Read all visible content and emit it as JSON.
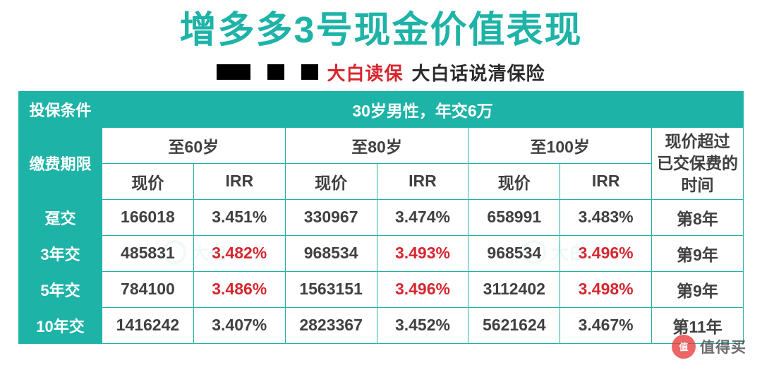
{
  "colors": {
    "teal": "#1eb3a7",
    "teal_border": "#1eb3a7",
    "red": "#d7262f",
    "dark_text": "#2b2b2b",
    "cell_text": "#404040",
    "white": "#ffffff",
    "wm_circle": "#e83a3a",
    "wm_text": "#444444"
  },
  "title": "增多多3号现金价值表现",
  "subtitle": {
    "red": "大白读保",
    "dark": "大白话说清保险"
  },
  "header": {
    "conditions_label": "投保条件",
    "conditions_value": "30岁男性，年交6万",
    "period_label": "缴费期限",
    "age_groups": [
      "至60岁",
      "至80岁",
      "至100岁"
    ],
    "sub_cols": [
      "现价",
      "IRR"
    ],
    "time_label_line1": "现价超过",
    "time_label_line2": "已交保费的",
    "time_label_line3": "时间"
  },
  "rows": [
    {
      "label": "趸交",
      "cells": [
        {
          "v": "166018",
          "red": false
        },
        {
          "v": "3.451%",
          "red": false
        },
        {
          "v": "330967",
          "red": false
        },
        {
          "v": "3.474%",
          "red": false
        },
        {
          "v": "658991",
          "red": false
        },
        {
          "v": "3.483%",
          "red": false
        }
      ],
      "time": "第8年"
    },
    {
      "label": "3年交",
      "cells": [
        {
          "v": "485831",
          "red": false
        },
        {
          "v": "3.482%",
          "red": true
        },
        {
          "v": "968534",
          "red": false
        },
        {
          "v": "3.493%",
          "red": true
        },
        {
          "v": "968534",
          "red": false
        },
        {
          "v": "3.496%",
          "red": true
        }
      ],
      "time": "第9年"
    },
    {
      "label": "5年交",
      "cells": [
        {
          "v": "784100",
          "red": false
        },
        {
          "v": "3.486%",
          "red": true
        },
        {
          "v": "1563151",
          "red": false
        },
        {
          "v": "3.496%",
          "red": true
        },
        {
          "v": "3112402",
          "red": false
        },
        {
          "v": "3.498%",
          "red": true
        }
      ],
      "time": "第9年"
    },
    {
      "label": "10年交",
      "cells": [
        {
          "v": "1416242",
          "red": false
        },
        {
          "v": "3.407%",
          "red": false
        },
        {
          "v": "2823367",
          "red": false
        },
        {
          "v": "3.452%",
          "red": false
        },
        {
          "v": "5621624",
          "red": false
        },
        {
          "v": "3.467%",
          "red": false
        }
      ],
      "time": "第11年"
    }
  ],
  "watermark": {
    "circle_top": "值",
    "text": "值得买"
  },
  "faint_watermark": "大白"
}
